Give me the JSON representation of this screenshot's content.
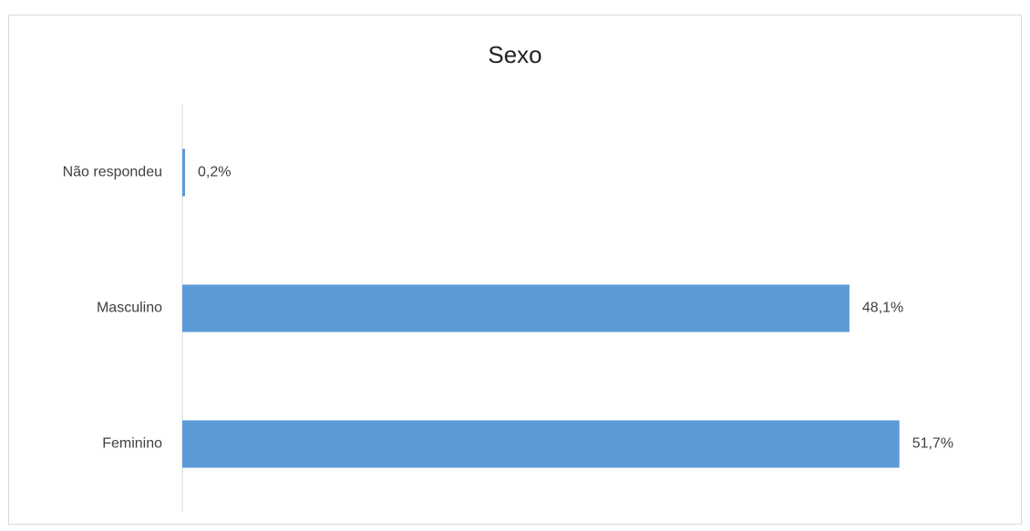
{
  "chart_data": {
    "type": "hbar",
    "title": "Sexo",
    "categories": [
      "Não respondeu",
      "Masculino",
      "Feminino"
    ],
    "values": [
      0.2,
      48.1,
      51.7
    ],
    "value_labels": [
      "0,2%",
      "48,1%",
      "51,7%"
    ],
    "color": "#5b9bd5",
    "xlim": [
      0,
      60
    ]
  }
}
